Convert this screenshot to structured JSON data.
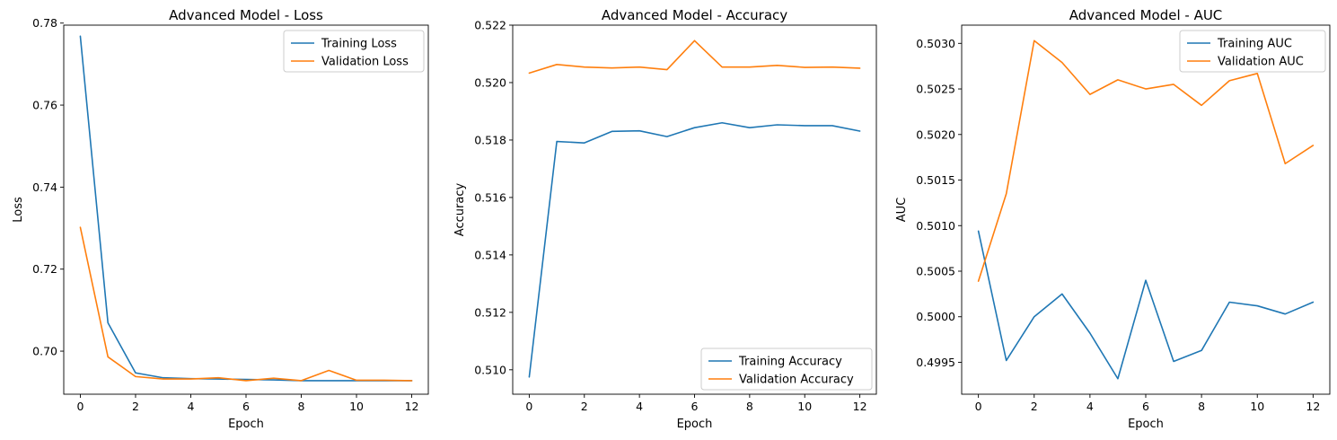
{
  "chart_data": [
    {
      "type": "line",
      "title": "Advanced Model - Loss",
      "xlabel": "Epoch",
      "ylabel": "Loss",
      "xlim": [
        -0.6,
        12.6
      ],
      "ylim": [
        0.6895,
        0.7795
      ],
      "xticks": [
        0,
        2,
        4,
        6,
        8,
        10,
        12
      ],
      "yticks": [
        0.7,
        0.72,
        0.74,
        0.76,
        0.78
      ],
      "ytick_labels": [
        "0.70",
        "0.72",
        "0.74",
        "0.76",
        "0.78"
      ],
      "legend_position": "top-right",
      "x": [
        0,
        1,
        2,
        3,
        4,
        5,
        6,
        7,
        8,
        9,
        10,
        11,
        12
      ],
      "series": [
        {
          "name": "Training Loss",
          "color": "#1f77b4",
          "values": [
            0.7768,
            0.7069,
            0.6947,
            0.6935,
            0.6933,
            0.6932,
            0.6931,
            0.693,
            0.6928,
            0.6928,
            0.6928,
            0.6928,
            0.6928
          ]
        },
        {
          "name": "Validation Loss",
          "color": "#ff7f0e",
          "values": [
            0.7302,
            0.6986,
            0.6938,
            0.6932,
            0.6932,
            0.6935,
            0.6928,
            0.6934,
            0.6928,
            0.6953,
            0.6929,
            0.6929,
            0.6928
          ]
        }
      ]
    },
    {
      "type": "line",
      "title": "Advanced Model - Accuracy",
      "xlabel": "Epoch",
      "ylabel": "Accuracy",
      "xlim": [
        -0.6,
        12.6
      ],
      "ylim": [
        0.50915,
        0.522
      ],
      "xticks": [
        0,
        2,
        4,
        6,
        8,
        10,
        12
      ],
      "yticks": [
        0.51,
        0.512,
        0.514,
        0.516,
        0.518,
        0.52,
        0.522
      ],
      "ytick_labels": [
        "0.510",
        "0.512",
        "0.514",
        "0.516",
        "0.518",
        "0.520",
        "0.522"
      ],
      "legend_position": "bottom-right",
      "x": [
        0,
        1,
        2,
        3,
        4,
        5,
        6,
        7,
        8,
        9,
        10,
        11,
        12
      ],
      "series": [
        {
          "name": "Training Accuracy",
          "color": "#1f77b4",
          "values": [
            0.50975,
            0.51795,
            0.5179,
            0.5183,
            0.51832,
            0.51812,
            0.51843,
            0.5186,
            0.51843,
            0.51853,
            0.5185,
            0.5185,
            0.51831
          ]
        },
        {
          "name": "Validation Accuracy",
          "color": "#ff7f0e",
          "values": [
            0.52033,
            0.52063,
            0.52054,
            0.52051,
            0.52054,
            0.52045,
            0.52146,
            0.52054,
            0.52054,
            0.5206,
            0.52053,
            0.52054,
            0.5205
          ]
        }
      ]
    },
    {
      "type": "line",
      "title": "Advanced Model - AUC",
      "xlabel": "Epoch",
      "ylabel": "AUC",
      "xlim": [
        -0.6,
        12.6
      ],
      "ylim": [
        0.49915,
        0.5032
      ],
      "xticks": [
        0,
        2,
        4,
        6,
        8,
        10,
        12
      ],
      "yticks": [
        0.4995,
        0.5,
        0.5005,
        0.501,
        0.5015,
        0.502,
        0.5025,
        0.503
      ],
      "ytick_labels": [
        "0.4995",
        "0.5000",
        "0.5005",
        "0.5010",
        "0.5015",
        "0.5020",
        "0.5025",
        "0.5030"
      ],
      "legend_position": "top-right",
      "x": [
        0,
        1,
        2,
        3,
        4,
        5,
        6,
        7,
        8,
        9,
        10,
        11,
        12
      ],
      "series": [
        {
          "name": "Training AUC",
          "color": "#1f77b4",
          "values": [
            0.50094,
            0.49952,
            0.5,
            0.50025,
            0.49982,
            0.49932,
            0.5004,
            0.49951,
            0.49963,
            0.50016,
            0.50012,
            0.50003,
            0.50016
          ]
        },
        {
          "name": "Validation AUC",
          "color": "#ff7f0e",
          "values": [
            0.50039,
            0.50135,
            0.50303,
            0.50279,
            0.50244,
            0.5026,
            0.5025,
            0.50255,
            0.50232,
            0.50259,
            0.50267,
            0.50168,
            0.50188
          ]
        }
      ]
    }
  ]
}
